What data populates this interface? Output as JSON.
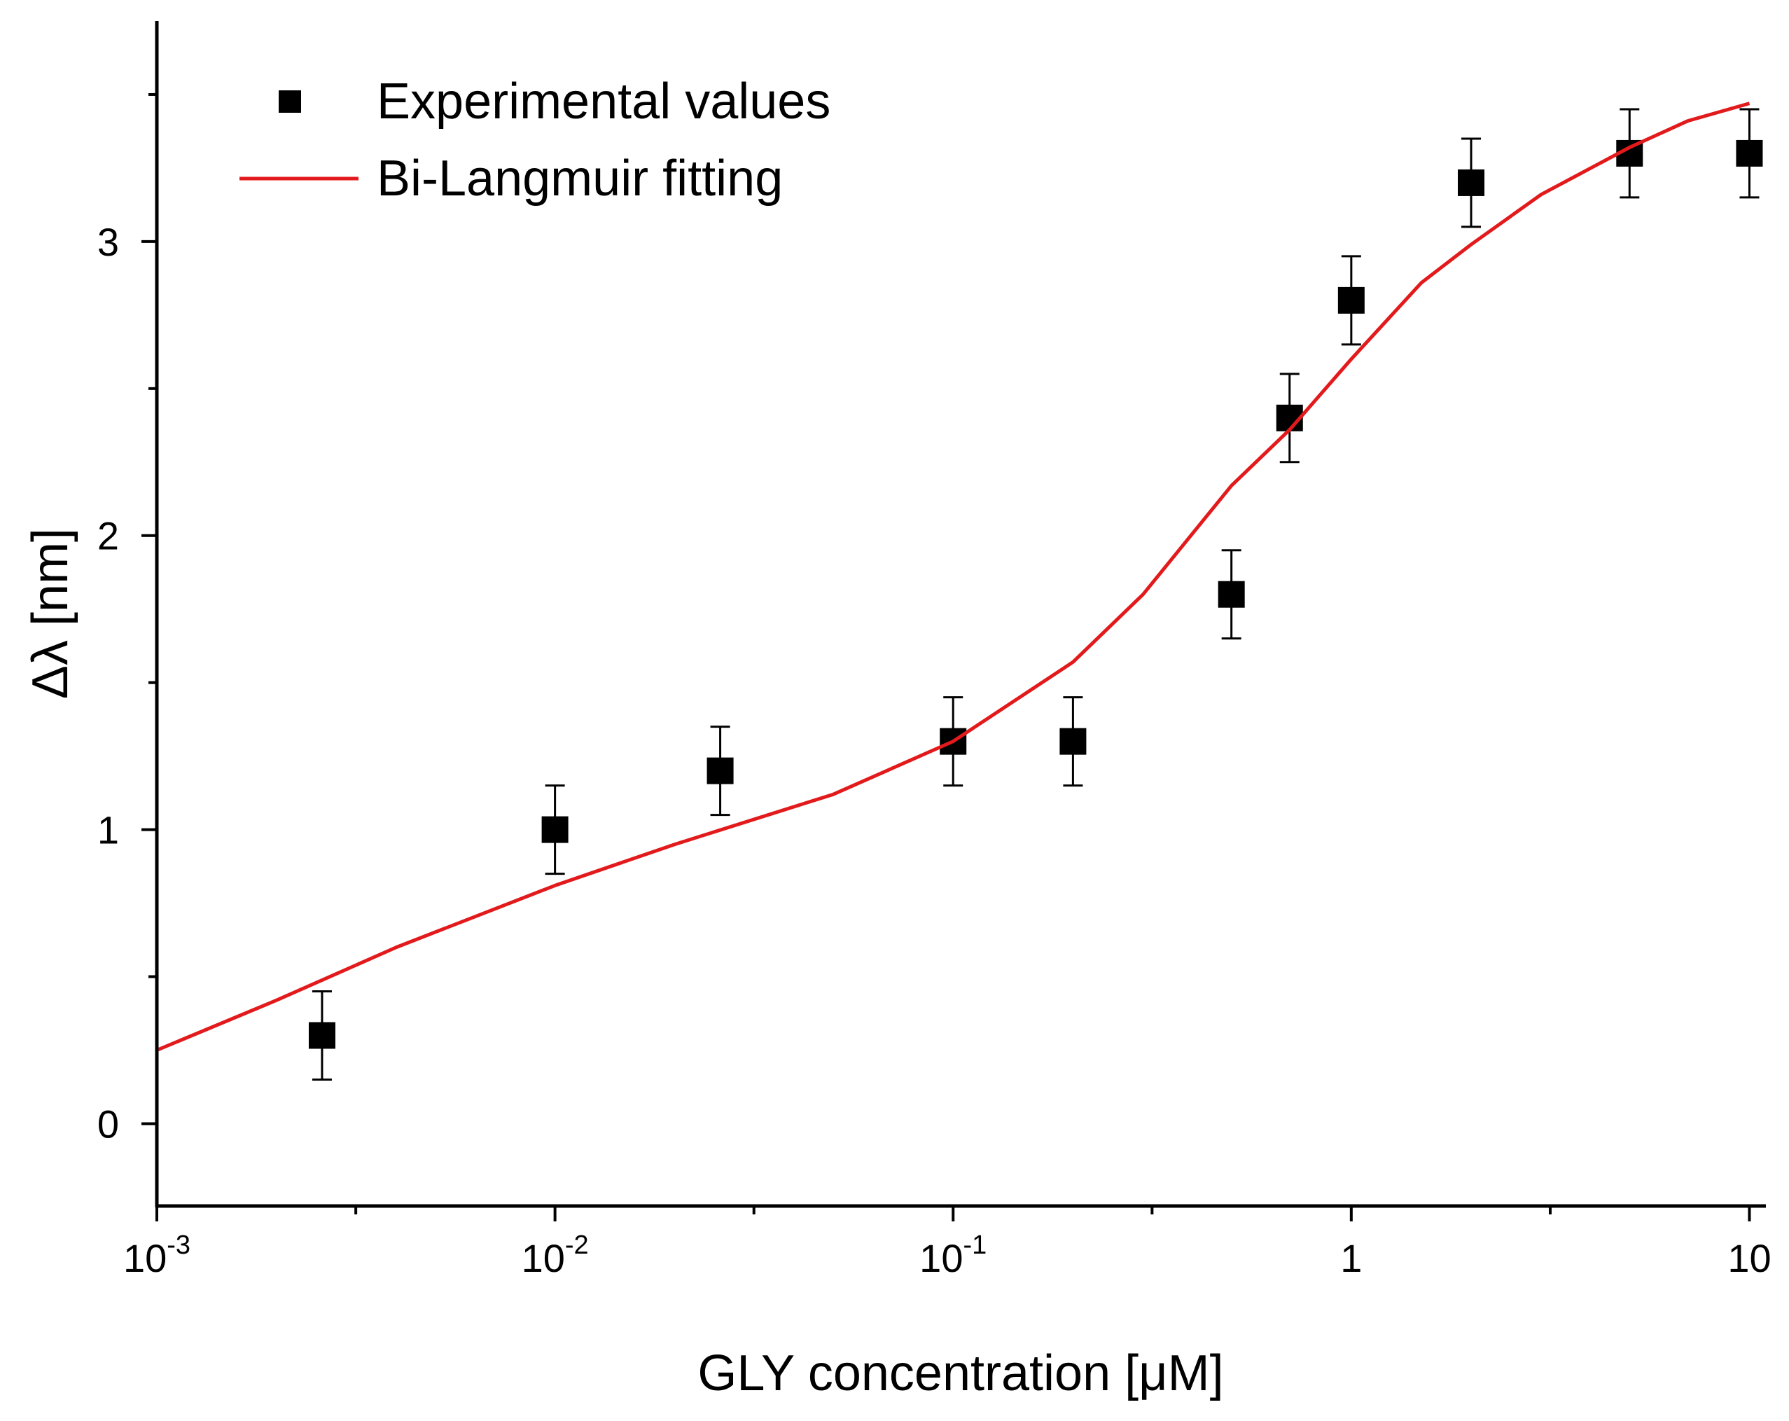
{
  "chart_data": {
    "type": "scatter",
    "title": "",
    "xlabel": "GLY concentration [μM]",
    "ylabel": "Δλ [nm]",
    "xscale": "log",
    "xlim": [
      0.001,
      11
    ],
    "ylim": [
      -0.28,
      3.75
    ],
    "x_ticks": [
      {
        "value": 0.001,
        "base": "10",
        "exp": "-3"
      },
      {
        "value": 0.01,
        "base": "10",
        "exp": "-2"
      },
      {
        "value": 0.1,
        "base": "10",
        "exp": "-1"
      },
      {
        "value": 1,
        "base": "1",
        "exp": ""
      },
      {
        "value": 10,
        "base": "10",
        "exp": ""
      }
    ],
    "x_minor_ticks": [
      0.00316,
      0.0316,
      0.316,
      3.16
    ],
    "y_ticks": [
      {
        "value": 0,
        "label": "0"
      },
      {
        "value": 1,
        "label": "1"
      },
      {
        "value": 2,
        "label": "2"
      },
      {
        "value": 3,
        "label": "3"
      }
    ],
    "y_minor_ticks": [
      0.5,
      1.5,
      2.5,
      3.5
    ],
    "legend_position": "top-left",
    "series": [
      {
        "name": "Experimental values",
        "kind": "points",
        "marker": "square",
        "color": "#000000",
        "points": [
          {
            "x": 0.0026,
            "y": 0.3,
            "err": 0.15
          },
          {
            "x": 0.01,
            "y": 1.0,
            "err": 0.15
          },
          {
            "x": 0.026,
            "y": 1.2,
            "err": 0.15
          },
          {
            "x": 0.1,
            "y": 1.3,
            "err": 0.15
          },
          {
            "x": 0.2,
            "y": 1.3,
            "err": 0.15
          },
          {
            "x": 0.5,
            "y": 1.8,
            "err": 0.15
          },
          {
            "x": 0.7,
            "y": 2.4,
            "err": 0.15
          },
          {
            "x": 1.0,
            "y": 2.8,
            "err": 0.15
          },
          {
            "x": 2.0,
            "y": 3.2,
            "err": 0.15
          },
          {
            "x": 5.0,
            "y": 3.3,
            "err": 0.15
          },
          {
            "x": 10.0,
            "y": 3.3,
            "err": 0.15
          }
        ]
      },
      {
        "name": "Bi-Langmuir fitting",
        "kind": "line",
        "color": "#e31a1c",
        "points": [
          {
            "x": 0.001,
            "y": 0.25
          },
          {
            "x": 0.002,
            "y": 0.42
          },
          {
            "x": 0.004,
            "y": 0.6
          },
          {
            "x": 0.01,
            "y": 0.81
          },
          {
            "x": 0.02,
            "y": 0.95
          },
          {
            "x": 0.05,
            "y": 1.12
          },
          {
            "x": 0.1,
            "y": 1.3
          },
          {
            "x": 0.2,
            "y": 1.57
          },
          {
            "x": 0.3,
            "y": 1.8
          },
          {
            "x": 0.5,
            "y": 2.17
          },
          {
            "x": 0.7,
            "y": 2.36
          },
          {
            "x": 1.0,
            "y": 2.6
          },
          {
            "x": 1.5,
            "y": 2.86
          },
          {
            "x": 2.0,
            "y": 2.99
          },
          {
            "x": 3.0,
            "y": 3.16
          },
          {
            "x": 5.0,
            "y": 3.32
          },
          {
            "x": 7.0,
            "y": 3.41
          },
          {
            "x": 10.0,
            "y": 3.47
          }
        ]
      }
    ]
  }
}
